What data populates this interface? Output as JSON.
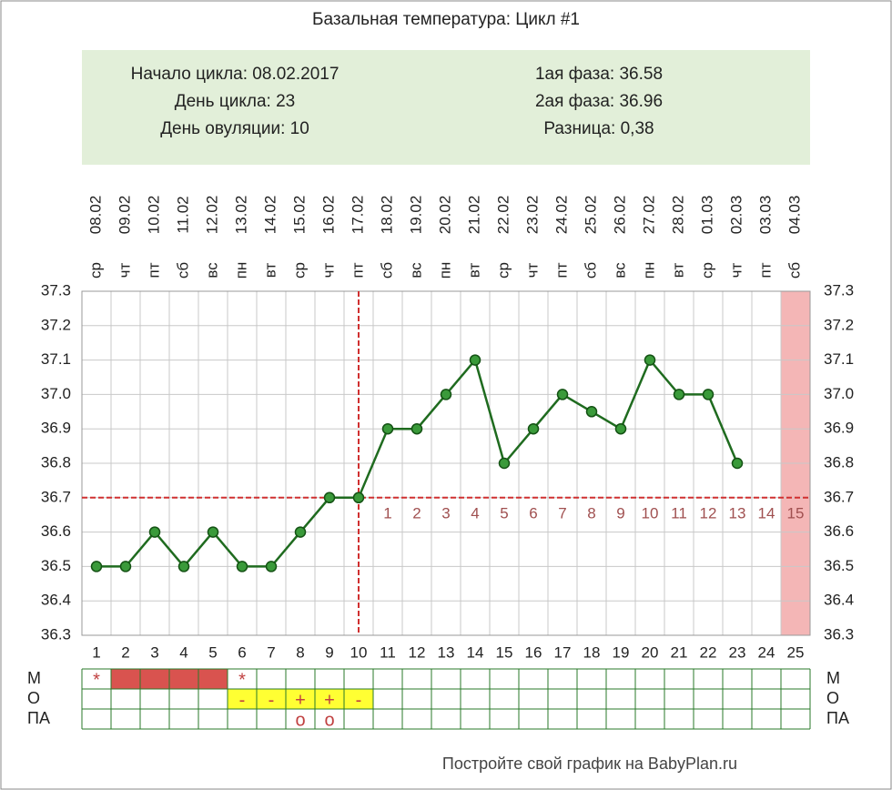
{
  "chart_data": {
    "type": "line",
    "title": "Базальная температура: Цикл #1",
    "info_left": [
      "Начало цикла: 08.02.2017",
      "День цикла: 23",
      "День овуляции: 10"
    ],
    "info_right": [
      "1ая фаза: 36.58",
      "2ая фаза: 36.96",
      "Разница: 0,38"
    ],
    "categories": [
      1,
      2,
      3,
      4,
      5,
      6,
      7,
      8,
      9,
      10,
      11,
      12,
      13,
      14,
      15,
      16,
      17,
      18,
      19,
      20,
      21,
      22,
      23,
      24,
      25
    ],
    "dates": [
      "08.02",
      "09.02",
      "10.02",
      "11.02",
      "12.02",
      "13.02",
      "14.02",
      "15.02",
      "16.02",
      "17.02",
      "18.02",
      "19.02",
      "20.02",
      "21.02",
      "22.02",
      "23.02",
      "24.02",
      "25.02",
      "26.02",
      "27.02",
      "28.02",
      "01.03",
      "02.03",
      "03.03",
      "04.03"
    ],
    "weekdays": [
      "ср",
      "чт",
      "пт",
      "сб",
      "вс",
      "пн",
      "вт",
      "ср",
      "чт",
      "пт",
      "сб",
      "вс",
      "пн",
      "вт",
      "ср",
      "чт",
      "пт",
      "сб",
      "вс",
      "пн",
      "вт",
      "ср",
      "чт",
      "пт",
      "сб"
    ],
    "series": [
      {
        "color": "#1f6b1f",
        "values": [
          36.5,
          36.5,
          36.6,
          36.5,
          36.6,
          36.5,
          36.5,
          36.6,
          36.7,
          36.7,
          36.9,
          36.9,
          37.0,
          37.1,
          36.8,
          36.9,
          37.0,
          36.95,
          36.9,
          37.1,
          37.0,
          37.0,
          36.8,
          null,
          null
        ]
      }
    ],
    "ylim": [
      36.3,
      37.3
    ],
    "yticks": [
      36.3,
      36.4,
      36.5,
      36.6,
      36.7,
      36.8,
      36.9,
      {
        "value": 37,
        "label": "37.0"
      },
      37.1,
      37.2,
      37.3
    ],
    "grid": true,
    "coverline": 36.7,
    "ovulation_day": 10,
    "phase_days": [
      1,
      2,
      3,
      4,
      5,
      6,
      7,
      8,
      9,
      10,
      11,
      12,
      13,
      14,
      15
    ],
    "shaded_days": [
      25
    ],
    "rows": [
      {
        "label": "М",
        "marks": [
          {
            "day": 1,
            "text": "*"
          },
          {
            "day": 6,
            "text": "*"
          }
        ],
        "fill_days": [
          2,
          3,
          4,
          5
        ],
        "fill": "#d9534f"
      },
      {
        "label": "О",
        "marks": [
          {
            "day": 6,
            "text": "-"
          },
          {
            "day": 7,
            "text": "-"
          },
          {
            "day": 8,
            "text": "+"
          },
          {
            "day": 9,
            "text": "+"
          },
          {
            "day": 10,
            "text": "-"
          }
        ],
        "fill_days": [
          6,
          7,
          8,
          9,
          10
        ],
        "fill": "#ffff33"
      },
      {
        "label": "ПА",
        "marks": [
          {
            "day": 8,
            "text": "o"
          },
          {
            "day": 9,
            "text": "o"
          }
        ]
      }
    ],
    "footer": "Постройте свой график на BabyPlan.ru"
  }
}
